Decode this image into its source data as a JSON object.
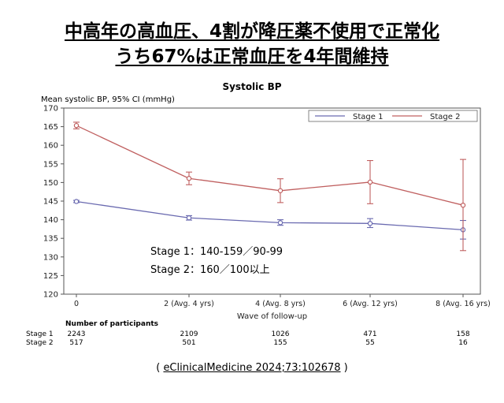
{
  "headline": {
    "line1": "中高年の高血圧、4割が降圧薬不使用で正常化",
    "line2": "うち67%は正常血圧を4年間維持"
  },
  "chart_data": {
    "type": "line",
    "title": "Systolic BP",
    "ylabel": "Mean systolic BP, 95% CI (mmHg)",
    "xlabel": "Wave of follow-up",
    "ylim": [
      120,
      170
    ],
    "yticks": [
      120,
      125,
      130,
      135,
      140,
      145,
      150,
      155,
      160,
      165,
      170
    ],
    "categories": [
      "0",
      "2 (Avg. 4 yrs)",
      "4 (Avg. 8 yrs)",
      "6 (Avg. 12 yrs)",
      "8 (Avg. 16 yrs)"
    ],
    "legend_position": "top-right",
    "series": [
      {
        "name": "Stage 1",
        "color": "#6a6ab0",
        "values": [
          144.9,
          140.5,
          139.2,
          139.0,
          137.3
        ],
        "ci_low": [
          144.6,
          139.9,
          138.5,
          137.9,
          134.8
        ],
        "ci_high": [
          145.2,
          141.1,
          140.0,
          140.3,
          139.8
        ]
      },
      {
        "name": "Stage 2",
        "color": "#c06060",
        "values": [
          165.3,
          151.1,
          147.8,
          150.1,
          143.9
        ],
        "ci_low": [
          164.4,
          149.4,
          144.6,
          144.3,
          131.7
        ],
        "ci_high": [
          166.2,
          152.8,
          151.0,
          155.9,
          156.2
        ]
      }
    ]
  },
  "annotations": {
    "stage1": "Stage 1：140-159／90-99",
    "stage2": "Stage 2：160／100以上"
  },
  "participants": {
    "title": "Number of participants",
    "rows": [
      {
        "label": "Stage 1",
        "values": [
          "2243",
          "2109",
          "1026",
          "471",
          "158"
        ]
      },
      {
        "label": "Stage 2",
        "values": [
          "517",
          "501",
          "155",
          "55",
          "16"
        ]
      }
    ]
  },
  "citation": {
    "open": "( ",
    "ref": "eClinicalMedicine 2024;73:102678",
    "close": " )"
  }
}
